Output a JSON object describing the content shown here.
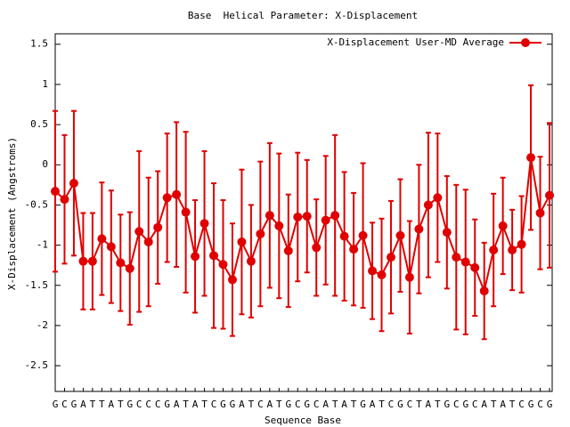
{
  "chart_data": {
    "type": "errorline",
    "title": "Base  Helical Parameter: X-Displacement",
    "xlabel": "Sequence Base",
    "ylabel": "X-Displacement (Angstroms)",
    "categories": [
      "G",
      "C",
      "G",
      "A",
      "T",
      "T",
      "A",
      "T",
      "G",
      "C",
      "C",
      "C",
      "G",
      "A",
      "T",
      "A",
      "T",
      "C",
      "G",
      "G",
      "A",
      "T",
      "C",
      "A",
      "T",
      "G",
      "C",
      "G",
      "C",
      "A",
      "T",
      "A",
      "T",
      "G",
      "A",
      "T",
      "C",
      "G",
      "C",
      "T",
      "A",
      "T",
      "G",
      "C",
      "G",
      "C",
      "A",
      "T",
      "A",
      "T",
      "C",
      "G",
      "C",
      "G"
    ],
    "series": [
      {
        "name": "X-Displacement User-MD Average",
        "color": "#e00000",
        "values": [
          -0.33,
          -0.43,
          -0.23,
          -1.2,
          -1.2,
          -0.92,
          -1.02,
          -1.22,
          -1.29,
          -0.83,
          -0.96,
          -0.78,
          -0.41,
          -0.37,
          -0.59,
          -1.14,
          -0.73,
          -1.13,
          -1.24,
          -1.43,
          -0.96,
          -1.2,
          -0.86,
          -0.63,
          -0.76,
          -1.07,
          -0.65,
          -0.64,
          -1.03,
          -0.69,
          -0.63,
          -0.89,
          -1.05,
          -0.88,
          -1.32,
          -1.37,
          -1.15,
          -0.88,
          -1.4,
          -0.8,
          -0.5,
          -0.41,
          -0.84,
          -1.15,
          -1.21,
          -1.28,
          -1.57,
          -1.06,
          -0.76,
          -1.06,
          -0.99,
          0.09,
          -0.6,
          -0.38
        ],
        "errors": [
          1.0,
          0.8,
          0.9,
          0.6,
          0.6,
          0.7,
          0.7,
          0.6,
          0.7,
          1.0,
          0.8,
          0.7,
          0.8,
          0.9,
          1.0,
          0.7,
          0.9,
          0.9,
          0.8,
          0.7,
          0.9,
          0.7,
          0.9,
          0.9,
          0.9,
          0.7,
          0.8,
          0.7,
          0.6,
          0.8,
          1.0,
          0.8,
          0.7,
          0.9,
          0.6,
          0.7,
          0.7,
          0.7,
          0.7,
          0.8,
          0.9,
          0.8,
          0.7,
          0.9,
          0.9,
          0.6,
          0.6,
          0.7,
          0.6,
          0.5,
          0.6,
          0.9,
          0.7,
          0.9
        ]
      }
    ],
    "ylim": [
      -2.82,
      1.63
    ],
    "yticks": [
      1.5,
      1,
      0.5,
      0,
      -0.5,
      -1,
      -1.5,
      -2,
      -2.5
    ],
    "legend": "top-right"
  }
}
